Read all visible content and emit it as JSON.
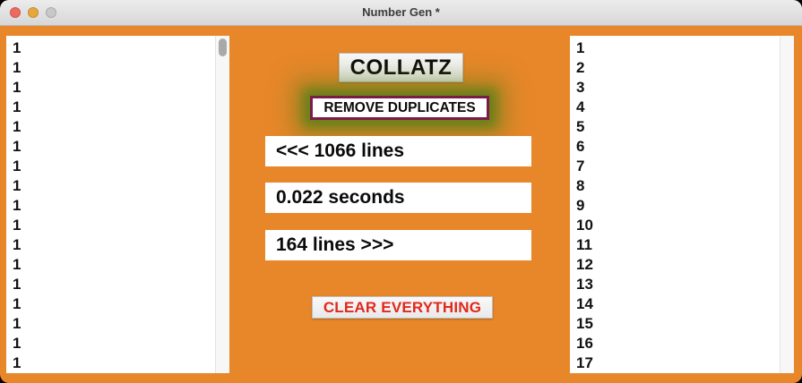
{
  "window": {
    "title": "Number Gen *"
  },
  "colors": {
    "background": "#E8872A",
    "glow_green": "#61801A",
    "remove_button_border": "#7A1C4A",
    "clear_text_red": "#E1291D"
  },
  "center": {
    "collatz_label": "COLLATZ",
    "remove_duplicates_label": "REMOVE DUPLICATES",
    "input_count_label": "<<< 1066 lines",
    "elapsed_label": "0.022 seconds",
    "output_count_label": "164 lines >>>",
    "clear_label": "CLEAR EVERYTHING"
  },
  "left_list": {
    "lines": [
      "1",
      "1",
      "1",
      "1",
      "1",
      "1",
      "1",
      "1",
      "1",
      "1",
      "1",
      "1",
      "1",
      "1",
      "1",
      "1",
      "1"
    ]
  },
  "right_list": {
    "lines": [
      "1",
      "2",
      "3",
      "4",
      "5",
      "6",
      "7",
      "8",
      "9",
      "10",
      "11",
      "12",
      "13",
      "14",
      "15",
      "16",
      "17"
    ]
  }
}
